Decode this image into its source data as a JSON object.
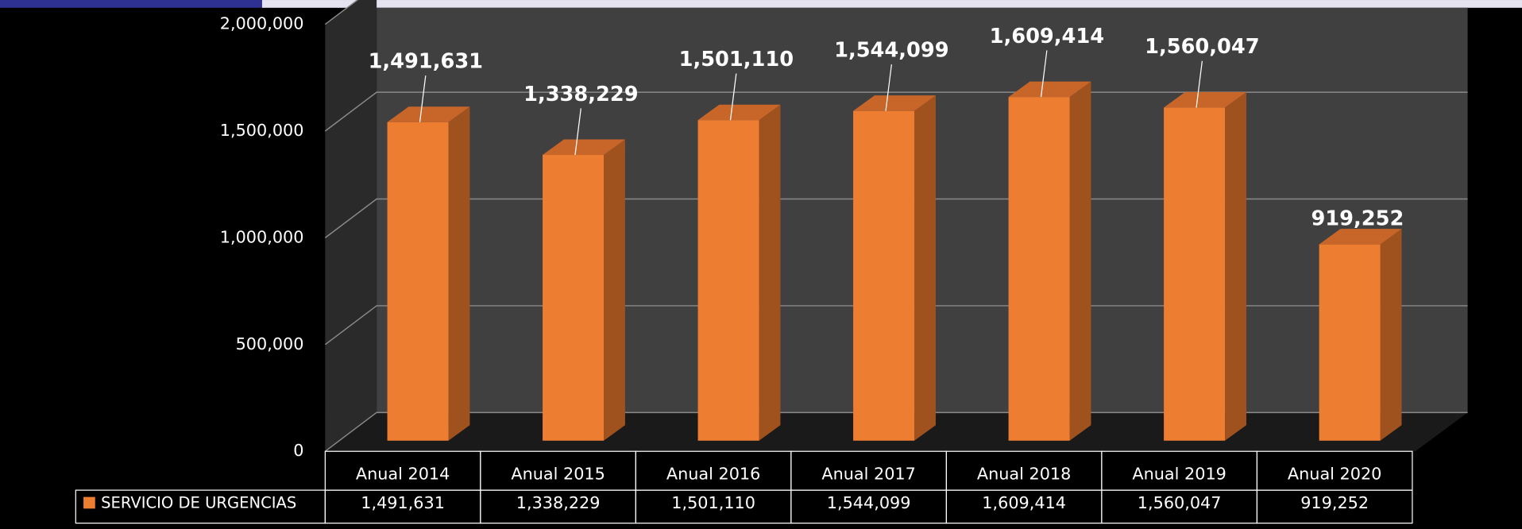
{
  "chart_data": {
    "type": "bar",
    "categories": [
      "Anual 2014",
      "Anual 2015",
      "Anual 2016",
      "Anual 2017",
      "Anual 2018",
      "Anual 2019",
      "Anual 2020"
    ],
    "series": [
      {
        "name": "SERVICIO DE URGENCIAS",
        "color": "#ed7d31",
        "values": [
          1491631,
          1338229,
          1501110,
          1544099,
          1609414,
          1560047,
          919252
        ],
        "value_labels": [
          "1,491,631",
          "1,338,229",
          "1,501,110",
          "1,544,099",
          "1,609,414",
          "1,560,047",
          "919,252"
        ]
      }
    ],
    "ylim": [
      0,
      2000000
    ],
    "yticks": [
      0,
      {
        "value": 500000,
        "label": "500,000"
      },
      {
        "value": 1000000,
        "label": "1,000,000"
      },
      {
        "value": 1500000,
        "label": "1,500,000"
      },
      {
        "value": 2000000,
        "label": "2,000,000"
      }
    ],
    "grid": true,
    "data_table": true
  }
}
